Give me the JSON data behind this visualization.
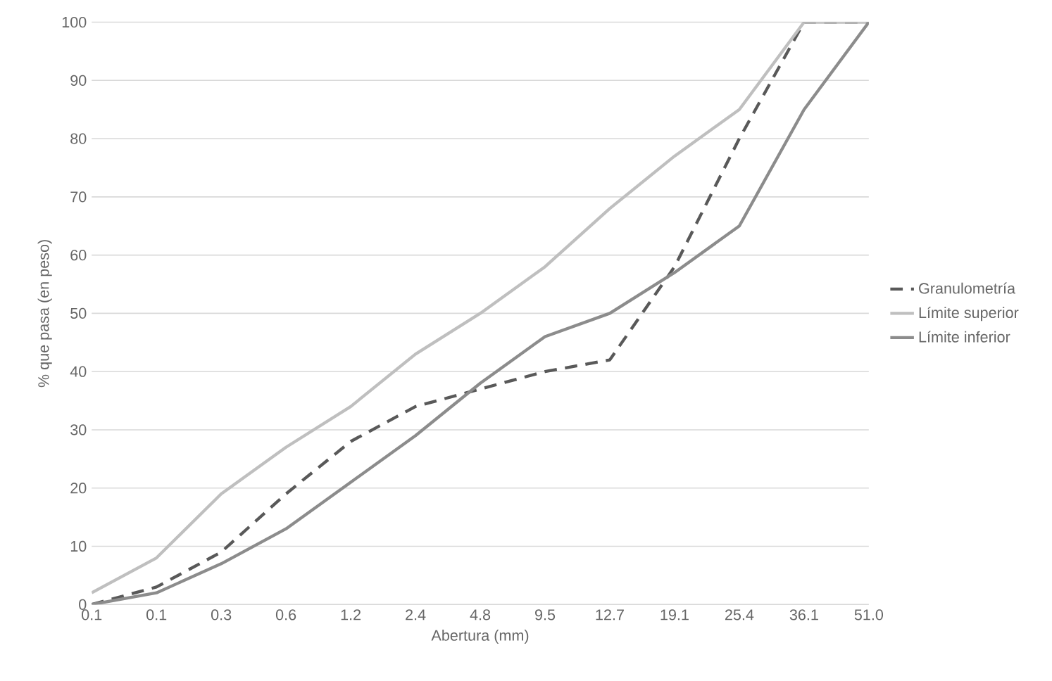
{
  "chart_data": {
    "type": "line",
    "xlabel": "Abertura (mm)",
    "ylabel": "% que pasa  (en peso)",
    "categories": [
      "0.1",
      "0.1",
      "0.3",
      "0.6",
      "1.2",
      "2.4",
      "4.8",
      "9.5",
      "12.7",
      "19.1",
      "25.4",
      "36.1",
      "51.0"
    ],
    "series": [
      {
        "name": "Granulometría",
        "color": "#595959",
        "line_style": "dashed",
        "values": [
          0,
          3,
          9,
          19,
          28,
          34,
          37,
          40,
          42,
          58,
          80,
          100,
          100
        ]
      },
      {
        "name": "Límite superior",
        "color": "#bfbfbf",
        "line_style": "solid",
        "values": [
          2,
          8,
          19,
          27,
          34,
          43,
          50,
          58,
          68,
          77,
          85,
          100,
          100
        ]
      },
      {
        "name": "Límite inferior",
        "color": "#8c8c8c",
        "line_style": "solid",
        "values": [
          0,
          2,
          7,
          13,
          21,
          29,
          38,
          46,
          50,
          57,
          65,
          85,
          100
        ]
      }
    ],
    "ylim": [
      0,
      100
    ],
    "yticks": [
      0,
      10,
      20,
      30,
      40,
      50,
      60,
      70,
      80,
      90,
      100
    ],
    "grid": "y",
    "legend": "right",
    "marker": "none"
  }
}
